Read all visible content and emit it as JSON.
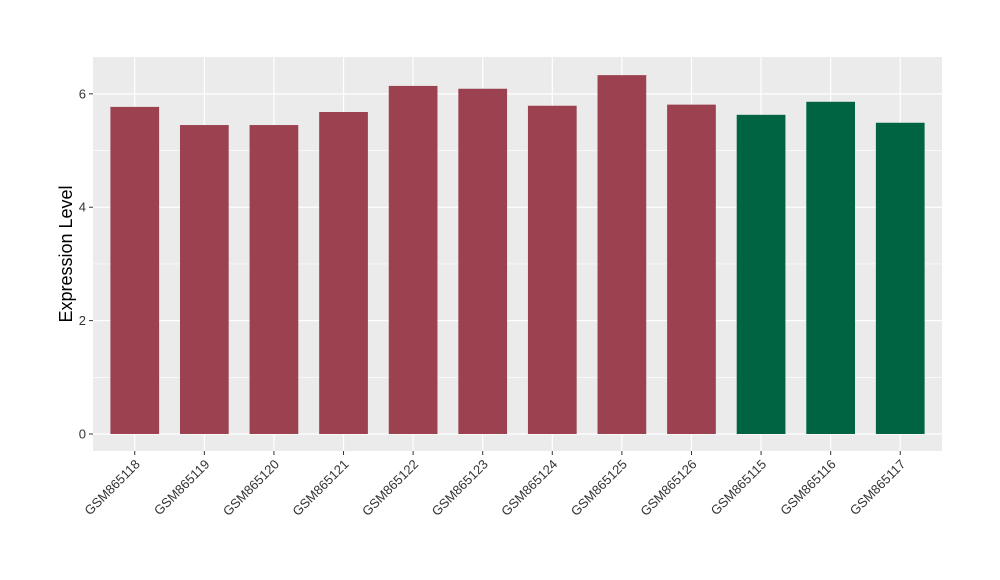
{
  "chart_data": {
    "type": "bar",
    "title": "",
    "xlabel": "",
    "ylabel": "Expression Level",
    "categories": [
      "GSM865118",
      "GSM865119",
      "GSM865120",
      "GSM865121",
      "GSM865122",
      "GSM865123",
      "GSM865124",
      "GSM865125",
      "GSM865126",
      "GSM865115",
      "GSM865116",
      "GSM865117"
    ],
    "values": [
      5.77,
      5.45,
      5.45,
      5.68,
      6.14,
      6.09,
      5.79,
      6.33,
      5.81,
      5.63,
      5.86,
      5.49
    ],
    "bar_colors": [
      "#9b4150",
      "#9b4150",
      "#9b4150",
      "#9b4150",
      "#9b4150",
      "#9b4150",
      "#9b4150",
      "#9b4150",
      "#9b4150",
      "#006442",
      "#006442",
      "#006442"
    ],
    "yticks": [
      0,
      2,
      4,
      6
    ],
    "ylim": [
      -0.3,
      6.65
    ],
    "grid": true,
    "panel_background": "#ebebeb",
    "legend": "none"
  }
}
